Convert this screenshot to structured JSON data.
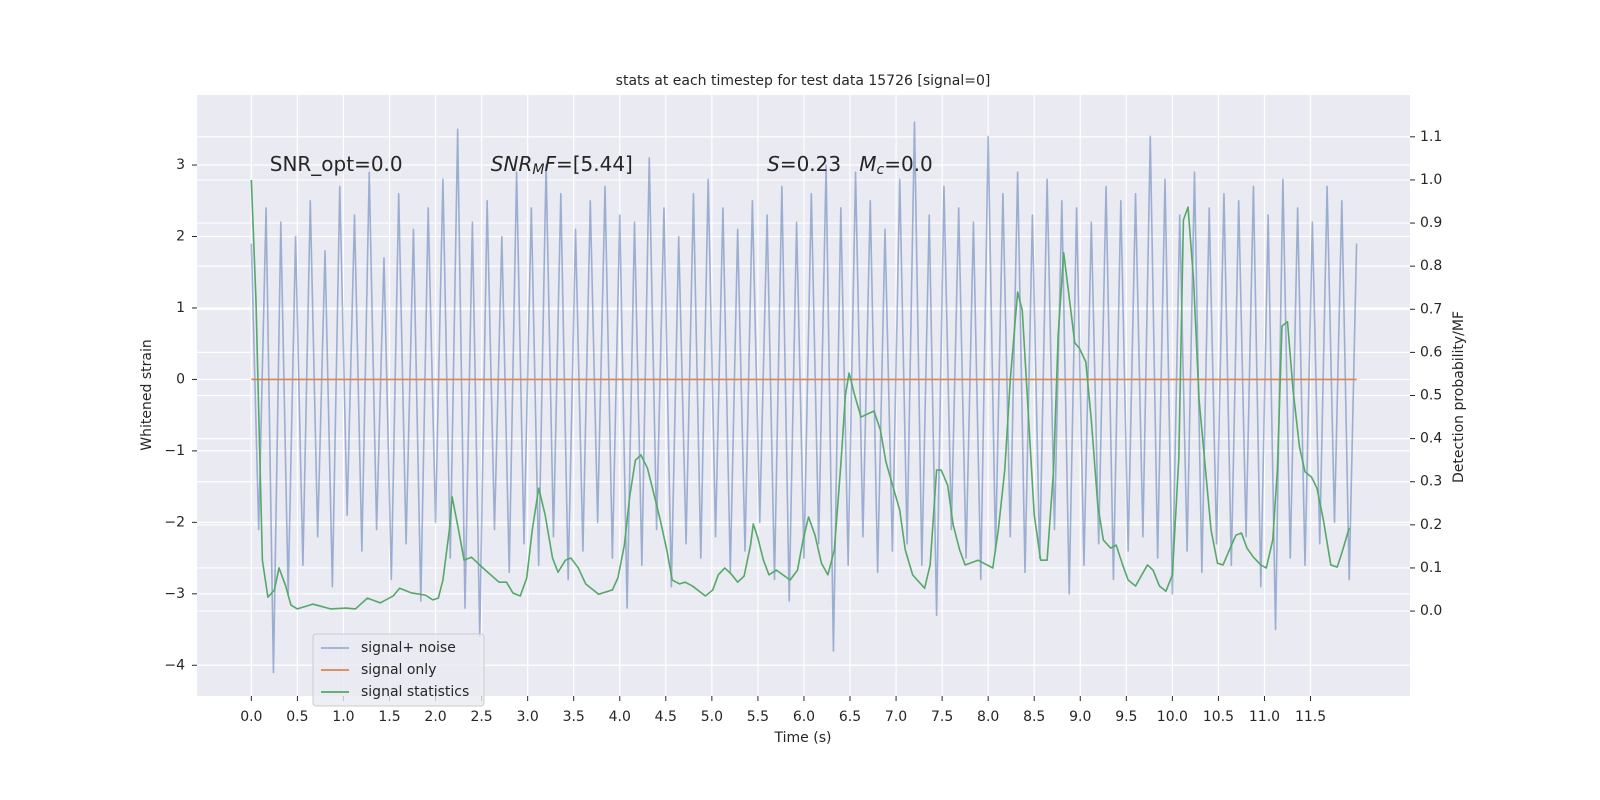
{
  "chart_data": {
    "type": "line",
    "title": "stats at each timestep for test data 15726 [signal=0]",
    "xlabel": "Time (s)",
    "ylabel": "Whitened strain",
    "y2label": "Detection probability/MF",
    "xlim": [
      -0.59,
      12.58
    ],
    "ylim": [
      -4.43,
      3.98
    ],
    "y2lim": [
      -0.197,
      1.197
    ],
    "xticks": [
      {
        "value": 0,
        "label": "0.0"
      },
      0.5,
      {
        "value": 1,
        "label": "1.0"
      },
      1.5,
      {
        "value": 2,
        "label": "2.0"
      },
      2.5,
      {
        "value": 3,
        "label": "3.0"
      },
      3.5,
      {
        "value": 4,
        "label": "4.0"
      },
      4.5,
      {
        "value": 5,
        "label": "5.0"
      },
      5.5,
      {
        "value": 6,
        "label": "6.0"
      },
      6.5,
      {
        "value": 7,
        "label": "7.0"
      },
      7.5,
      {
        "value": 8,
        "label": "8.0"
      },
      8.5,
      {
        "value": 9,
        "label": "9.0"
      },
      9.5,
      {
        "value": 10,
        "label": "10.0"
      },
      10.5,
      {
        "value": 11,
        "label": "11.0"
      },
      11.5
    ],
    "yticks": [
      {
        "value": -4,
        "label": "−4"
      },
      {
        "value": -3,
        "label": "−3"
      },
      {
        "value": -2,
        "label": "−2"
      },
      {
        "value": -1,
        "label": "−1"
      },
      0,
      1,
      2,
      3
    ],
    "y2ticks": [
      {
        "value": 0,
        "label": "0.0"
      },
      0.1,
      0.2,
      0.3,
      0.4,
      0.5,
      0.6,
      0.7,
      0.8,
      0.9,
      {
        "value": 1,
        "label": "1.0"
      },
      1.1
    ],
    "grid": true,
    "legend": "lower left",
    "annotations": [
      {
        "x": 0.2,
        "y": 3.0,
        "parts": [
          {
            "text": "SNR_opt=0.0",
            "style": "normal"
          }
        ]
      },
      {
        "x": 2.6,
        "y": 3.0,
        "parts": [
          {
            "text": "SNR",
            "style": "italic"
          },
          {
            "text": "M",
            "style": "sub"
          },
          {
            "text": "F",
            "style": "italic"
          },
          {
            "text": "=[5.44]",
            "style": "normal"
          }
        ]
      },
      {
        "x": 5.6,
        "y": 3.0,
        "parts": [
          {
            "text": "S",
            "style": "italic"
          },
          {
            "text": "=0.23",
            "style": "normal"
          }
        ]
      },
      {
        "x": 6.6,
        "y": 3.0,
        "parts": [
          {
            "text": "M",
            "style": "italic"
          },
          {
            "text": "c",
            "style": "sub"
          },
          {
            "text": "=0.0",
            "style": "normal"
          }
        ]
      }
    ],
    "series": [
      {
        "name": "signal+ noise",
        "color": "#4c72b0",
        "opacity": 0.5,
        "x": [
          0,
          0.08,
          0.16,
          0.24,
          0.32,
          0.4,
          0.48,
          0.56,
          0.64,
          0.72,
          0.8,
          0.88,
          0.96,
          1.04,
          1.12,
          1.2,
          1.28,
          1.36,
          1.44,
          1.52,
          1.6,
          1.68,
          1.76,
          1.84,
          1.92,
          2,
          2.08,
          2.16,
          2.24,
          2.32,
          2.4,
          2.48,
          2.56,
          2.64,
          2.72,
          2.8,
          2.88,
          2.96,
          3.04,
          3.12,
          3.2,
          3.28,
          3.36,
          3.44,
          3.52,
          3.6,
          3.68,
          3.76,
          3.84,
          3.92,
          4,
          4.08,
          4.16,
          4.24,
          4.32,
          4.4,
          4.48,
          4.56,
          4.64,
          4.72,
          4.8,
          4.88,
          4.96,
          5.04,
          5.12,
          5.2,
          5.28,
          5.36,
          5.44,
          5.52,
          5.6,
          5.68,
          5.76,
          5.84,
          5.92,
          6,
          6.08,
          6.16,
          6.24,
          6.32,
          6.4,
          6.48,
          6.56,
          6.64,
          6.72,
          6.8,
          6.88,
          6.96,
          7.04,
          7.12,
          7.2,
          7.28,
          7.36,
          7.44,
          7.52,
          7.6,
          7.68,
          7.76,
          7.84,
          7.92,
          8,
          8.08,
          8.16,
          8.24,
          8.32,
          8.4,
          8.48,
          8.56,
          8.64,
          8.72,
          8.8,
          8.88,
          8.96,
          9.04,
          9.12,
          9.2,
          9.28,
          9.36,
          9.44,
          9.52,
          9.6,
          9.68,
          9.76,
          9.84,
          9.92,
          10,
          10.08,
          10.16,
          10.24,
          10.32,
          10.4,
          10.48,
          10.56,
          10.64,
          10.72,
          10.8,
          10.88,
          10.96,
          11.04,
          11.12,
          11.2,
          11.28,
          11.36,
          11.44,
          11.52,
          11.6,
          11.68,
          11.76,
          11.84,
          11.92,
          12
        ],
        "values": [
          1.9,
          -2.1,
          2.4,
          -4.1,
          2.2,
          -3.0,
          2.0,
          -2.6,
          2.5,
          -2.2,
          1.8,
          -2.9,
          2.7,
          -1.9,
          2.3,
          -2.4,
          2.9,
          -2.1,
          1.7,
          -2.8,
          2.6,
          -2.3,
          2.1,
          -3.1,
          2.4,
          -2.0,
          2.8,
          -2.5,
          3.5,
          -3.2,
          2.2,
          -3.6,
          2.5,
          -2.1,
          2.0,
          -2.7,
          2.9,
          -2.3,
          2.4,
          -2.6,
          3.0,
          -2.2,
          2.6,
          -2.8,
          2.1,
          -2.4,
          2.5,
          -2.0,
          2.7,
          -2.5,
          2.3,
          -3.2,
          2.2,
          -2.6,
          3.1,
          -2.1,
          2.4,
          -2.9,
          2.0,
          -2.3,
          2.6,
          -2.5,
          2.8,
          -2.2,
          2.4,
          -2.7,
          2.1,
          -2.4,
          2.5,
          -2.0,
          2.3,
          -2.8,
          2.7,
          -3.1,
          2.2,
          -2.5,
          2.6,
          -2.3,
          3.0,
          -3.8,
          2.4,
          -2.6,
          2.9,
          -2.2,
          2.5,
          -2.7,
          2.1,
          -2.4,
          2.8,
          -2.3,
          3.6,
          -2.6,
          2.3,
          -3.3,
          2.7,
          -2.1,
          2.4,
          -2.5,
          2.2,
          -2.8,
          3.4,
          -2.4,
          2.6,
          -2.2,
          2.9,
          -2.7,
          2.3,
          -2.5,
          2.8,
          -2.1,
          2.5,
          -3.0,
          2.4,
          -2.6,
          2.2,
          -2.3,
          2.7,
          -2.8,
          2.5,
          -2.4,
          2.6,
          -2.2,
          3.4,
          -2.5,
          2.8,
          -3.0,
          2.3,
          -2.4,
          2.9,
          -2.7,
          2.4,
          -2.3,
          2.6,
          -2.6,
          2.5,
          -2.2,
          2.7,
          -2.9,
          2.3,
          -3.5,
          2.8,
          -2.5,
          2.4,
          -2.6,
          2.2,
          -2.3,
          2.7,
          -2.0,
          2.5,
          -2.8,
          1.9
        ]
      },
      {
        "name": "signal only",
        "color": "#dd8452",
        "opacity": 1,
        "x": [
          0,
          12
        ],
        "values": [
          0,
          0
        ]
      },
      {
        "name": "signal statistics",
        "color": "#55a868",
        "opacity": 1,
        "axis": "y2",
        "x": [
          0,
          0.05,
          0.12,
          0.18,
          0.25,
          0.3,
          0.37,
          0.43,
          0.5,
          0.67,
          0.86,
          1.03,
          1.13,
          1.26,
          1.4,
          1.54,
          1.61,
          1.74,
          1.89,
          1.97,
          2.03,
          2.08,
          2.15,
          2.18,
          2.25,
          2.31,
          2.39,
          2.54,
          2.69,
          2.77,
          2.84,
          2.92,
          2.99,
          3.05,
          3.12,
          3.19,
          3.27,
          3.33,
          3.41,
          3.47,
          3.55,
          3.63,
          3.77,
          3.92,
          3.98,
          4.05,
          4.11,
          4.17,
          4.23,
          4.3,
          4.36,
          4.44,
          4.51,
          4.57,
          4.65,
          4.71,
          4.79,
          4.93,
          5.01,
          5.07,
          5.14,
          5.21,
          5.28,
          5.35,
          5.42,
          5.45,
          5.5,
          5.56,
          5.62,
          5.7,
          5.85,
          5.93,
          5.99,
          6.05,
          6.12,
          6.19,
          6.26,
          6.33,
          6.4,
          6.45,
          6.49,
          6.55,
          6.62,
          6.76,
          6.83,
          6.89,
          7.04,
          7.1,
          7.18,
          7.31,
          7.37,
          7.44,
          7.49,
          7.56,
          7.62,
          7.69,
          7.75,
          7.89,
          8.05,
          8.11,
          8.18,
          8.24,
          8.32,
          8.37,
          8.44,
          8.5,
          8.57,
          8.64,
          8.71,
          8.76,
          8.82,
          8.87,
          8.94,
          8.99,
          9.06,
          9.12,
          9.19,
          9.25,
          9.33,
          9.39,
          9.46,
          9.52,
          9.6,
          9.66,
          9.73,
          9.79,
          9.86,
          9.93,
          10,
          10.07,
          10.12,
          10.17,
          10.23,
          10.29,
          10.36,
          10.42,
          10.49,
          10.55,
          10.62,
          10.69,
          10.75,
          10.81,
          10.88,
          10.96,
          11.02,
          11.09,
          11.14,
          11.19,
          11.25,
          11.31,
          11.38,
          11.44,
          11.51,
          11.57,
          11.64,
          11.72,
          11.79,
          11.85,
          11.92
        ],
        "values": [
          1.0,
          0.722,
          0.118,
          0.032,
          0.049,
          0.1,
          0.06,
          0.014,
          0.005,
          0.016,
          0.005,
          0.007,
          0.005,
          0.03,
          0.019,
          0.035,
          0.053,
          0.042,
          0.037,
          0.026,
          0.03,
          0.072,
          0.188,
          0.265,
          0.188,
          0.118,
          0.125,
          0.095,
          0.067,
          0.067,
          0.042,
          0.035,
          0.077,
          0.188,
          0.285,
          0.223,
          0.123,
          0.09,
          0.118,
          0.123,
          0.1,
          0.063,
          0.039,
          0.049,
          0.077,
          0.153,
          0.269,
          0.35,
          0.362,
          0.332,
          0.281,
          0.211,
          0.142,
          0.072,
          0.063,
          0.067,
          0.058,
          0.035,
          0.049,
          0.084,
          0.1,
          0.086,
          0.067,
          0.081,
          0.153,
          0.202,
          0.169,
          0.118,
          0.084,
          0.095,
          0.072,
          0.095,
          0.165,
          0.218,
          0.176,
          0.111,
          0.084,
          0.142,
          0.339,
          0.501,
          0.552,
          0.501,
          0.45,
          0.464,
          0.42,
          0.346,
          0.234,
          0.142,
          0.084,
          0.053,
          0.107,
          0.327,
          0.327,
          0.292,
          0.2,
          0.142,
          0.107,
          0.118,
          0.1,
          0.188,
          0.327,
          0.536,
          0.74,
          0.698,
          0.443,
          0.223,
          0.118,
          0.118,
          0.327,
          0.64,
          0.831,
          0.745,
          0.622,
          0.61,
          0.578,
          0.443,
          0.246,
          0.165,
          0.146,
          0.153,
          0.107,
          0.072,
          0.058,
          0.081,
          0.107,
          0.095,
          0.058,
          0.046,
          0.084,
          0.355,
          0.907,
          0.937,
          0.768,
          0.49,
          0.327,
          0.188,
          0.111,
          0.107,
          0.142,
          0.176,
          0.181,
          0.146,
          0.125,
          0.107,
          0.1,
          0.165,
          0.327,
          0.661,
          0.671,
          0.513,
          0.381,
          0.323,
          0.311,
          0.285,
          0.211,
          0.107,
          0.102,
          0.142,
          0.193
        ]
      }
    ]
  }
}
